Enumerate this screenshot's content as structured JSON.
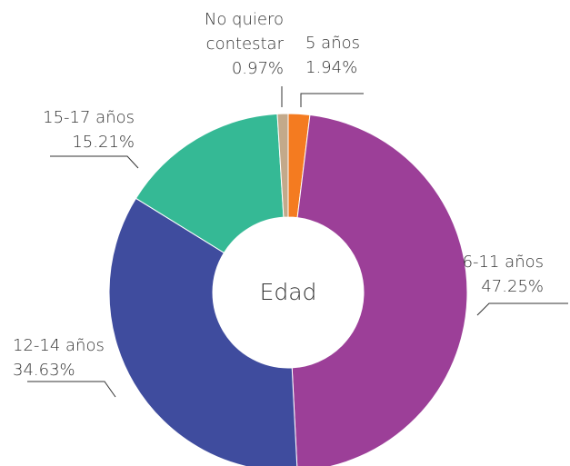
{
  "chart_data": {
    "type": "pie",
    "title": "Edad",
    "categories": [
      "5 años",
      "6-11 años",
      "12-14 años",
      "15-17 años",
      "No quiero contestar"
    ],
    "values": [
      1.94,
      47.25,
      34.63,
      15.21,
      0.97
    ],
    "value_labels": [
      "1.94%",
      "47.25%",
      "34.63%",
      "15.21%",
      "0.97%"
    ],
    "colors": [
      "#f47b20",
      "#9c3f98",
      "#3f4c9e",
      "#35b995",
      "#c3a98a"
    ],
    "donut": true
  }
}
